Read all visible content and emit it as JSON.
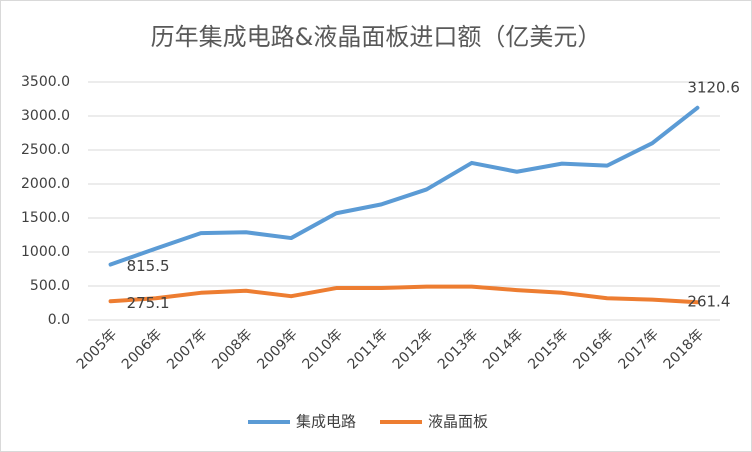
{
  "chart_data": {
    "type": "line",
    "title": "历年集成电路&液晶面板进口额（亿美元）",
    "categories": [
      "2005年",
      "2006年",
      "2007年",
      "2008年",
      "2009年",
      "2010年",
      "2011年",
      "2012年",
      "2013年",
      "2014年",
      "2015年",
      "2016年",
      "2017年",
      "2018年"
    ],
    "series": [
      {
        "name": "集成电路",
        "color": "#5b9bd5",
        "values": [
          815.5,
          1050,
          1277,
          1290,
          1205,
          1570,
          1700,
          1920,
          2310,
          2180,
          2300,
          2270,
          2600,
          3120.6
        ],
        "value_labels": [
          "815.5",
          null,
          null,
          null,
          null,
          null,
          null,
          null,
          null,
          null,
          null,
          null,
          null,
          "3120.6"
        ]
      },
      {
        "name": "液晶面板",
        "color": "#ed7d31",
        "values": [
          275.1,
          320,
          400,
          430,
          350,
          470,
          470,
          490,
          490,
          440,
          400,
          320,
          300,
          261.4
        ],
        "value_labels": [
          "275.1",
          null,
          null,
          null,
          null,
          null,
          null,
          null,
          null,
          null,
          null,
          null,
          null,
          "261.4"
        ]
      }
    ],
    "ylim": [
      0,
      3500
    ],
    "yticks": [
      {
        "value": 0,
        "label": "0.0"
      },
      {
        "value": 500,
        "label": "500.0"
      },
      {
        "value": 1000,
        "label": "1000.0"
      },
      {
        "value": 1500,
        "label": "1500.0"
      },
      {
        "value": 2000,
        "label": "2000.0"
      },
      {
        "value": 2500,
        "label": "2500.0"
      },
      {
        "value": 3000,
        "label": "3000.0"
      },
      {
        "value": 3500,
        "label": "3500.0"
      }
    ],
    "grid": true,
    "legend": "bottom"
  }
}
